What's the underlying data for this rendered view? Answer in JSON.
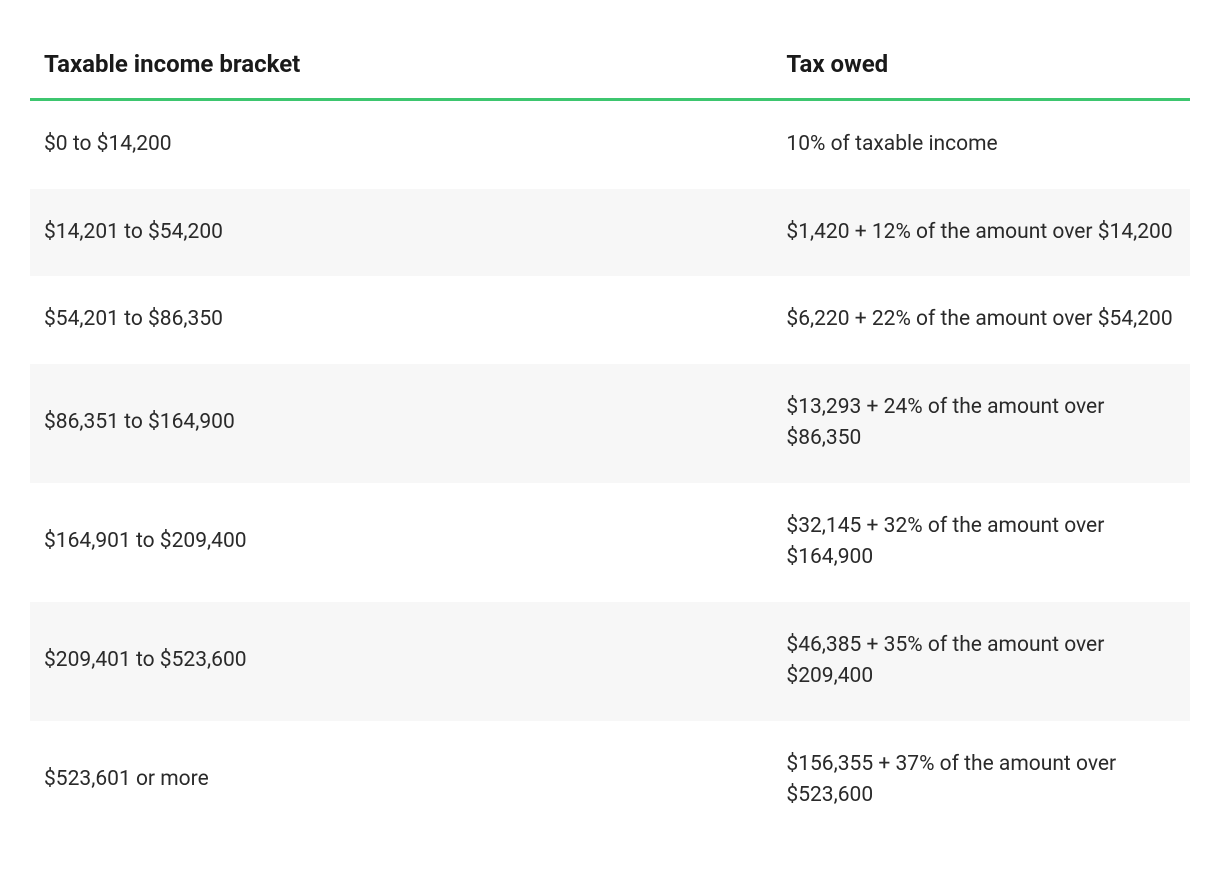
{
  "table": {
    "columns": [
      "Taxable income bracket",
      "Tax owed"
    ],
    "column_widths": [
      "64%",
      "36%"
    ],
    "header_border_color": "#3dc66f",
    "header_font_size": 24,
    "header_font_weight": 700,
    "cell_font_size": 21,
    "row_alt_background": "#f7f7f7",
    "text_color": "#1a1a1a",
    "rows": [
      {
        "bracket": "$0 to $14,200",
        "owed": "10% of taxable income"
      },
      {
        "bracket": "$14,201 to $54,200",
        "owed": "$1,420 + 12% of the amount over $14,200"
      },
      {
        "bracket": "$54,201 to $86,350",
        "owed": "$6,220 + 22% of the amount over $54,200"
      },
      {
        "bracket": "$86,351 to $164,900",
        "owed": "$13,293 + 24% of the amount over $86,350"
      },
      {
        "bracket": "$164,901 to $209,400",
        "owed": "$32,145 + 32% of the amount over $164,900"
      },
      {
        "bracket": "$209,401 to $523,600",
        "owed": "$46,385 + 35% of the amount over $209,400"
      },
      {
        "bracket": "$523,601 or more",
        "owed": "$156,355 + 37% of the amount over $523,600"
      }
    ]
  }
}
